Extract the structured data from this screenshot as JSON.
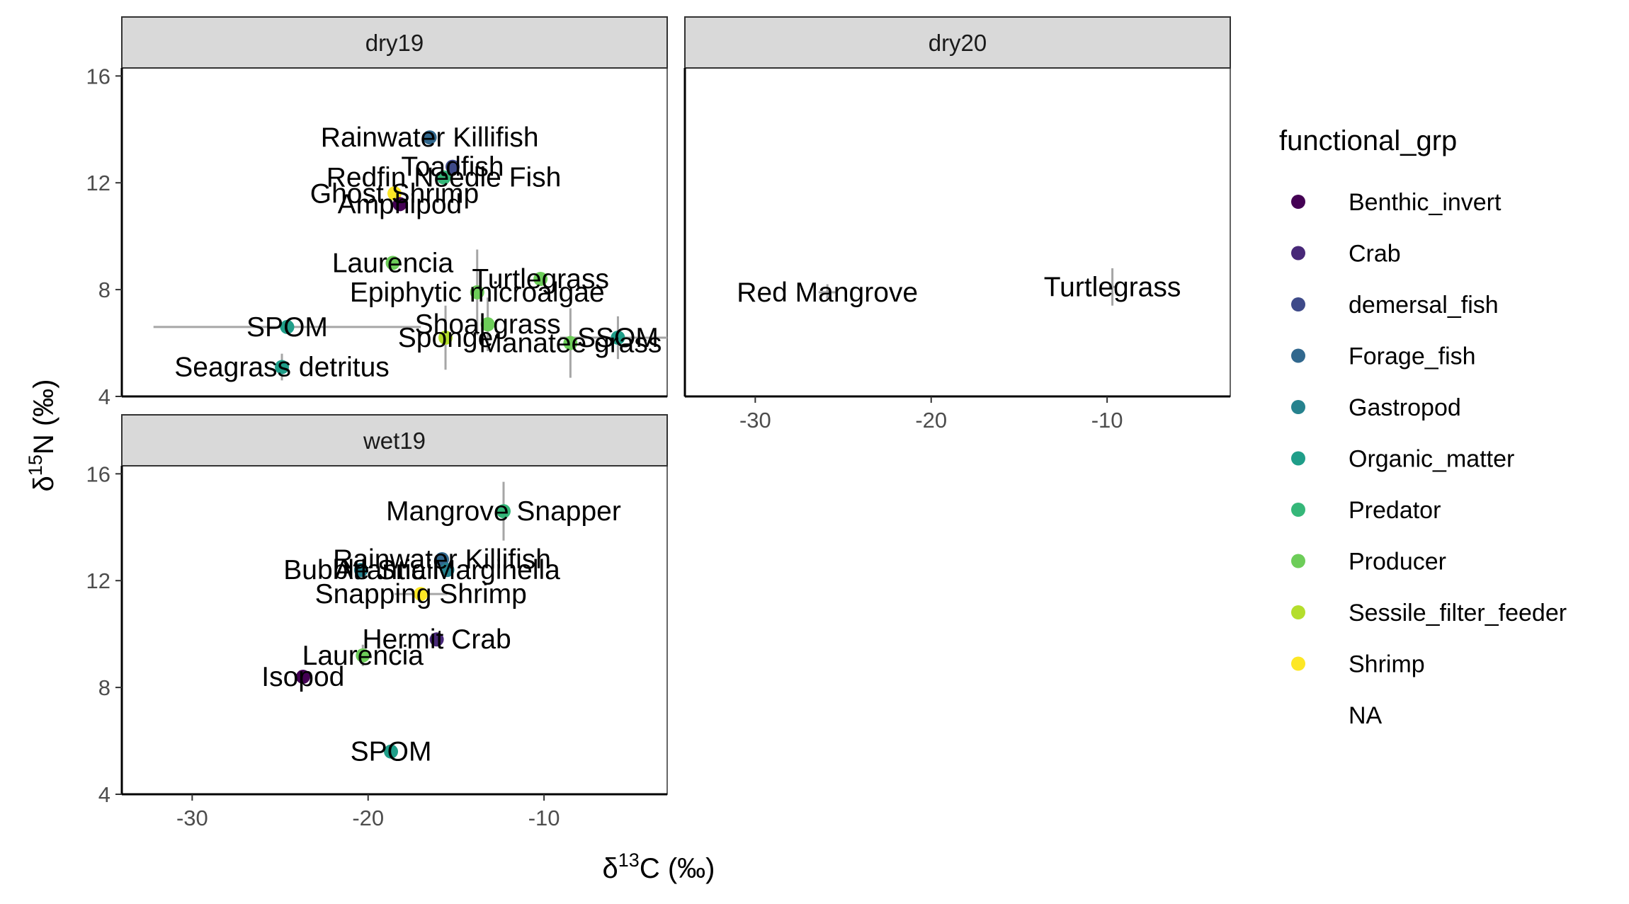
{
  "chart_data": {
    "type": "scatter",
    "xlabel_main": "δ",
    "xlabel_sup": "13",
    "xlabel_rest": "C (‰)",
    "ylabel_main": "δ",
    "ylabel_sup": "15",
    "ylabel_rest": "N (‰)",
    "xlim": [
      -34,
      -3
    ],
    "ylim": [
      4,
      16.3
    ],
    "x_ticks": [
      -30,
      -20,
      -10
    ],
    "y_ticks": [
      4,
      8,
      12,
      16
    ],
    "x_tick_labels": [
      "-30",
      "-20",
      "-10"
    ],
    "y_tick_labels": [
      "4",
      "8",
      "12",
      "16"
    ],
    "legend": {
      "title": "functional_grp",
      "position": "right",
      "entries": [
        {
          "label": "Benthic_invert",
          "color": "#440154"
        },
        {
          "label": "Crab",
          "color": "#482878"
        },
        {
          "label": "demersal_fish",
          "color": "#3E4A89"
        },
        {
          "label": "Forage_fish",
          "color": "#31688E"
        },
        {
          "label": "Gastropod",
          "color": "#26828E"
        },
        {
          "label": "Organic_matter",
          "color": "#1F9E89"
        },
        {
          "label": "Predator",
          "color": "#35B779"
        },
        {
          "label": "Producer",
          "color": "#6DCD59"
        },
        {
          "label": "Sessile_filter_feeder",
          "color": "#B4DE2C"
        },
        {
          "label": "Shrimp",
          "color": "#FDE725"
        },
        {
          "label": "NA",
          "color": null
        }
      ]
    },
    "facets": [
      {
        "strip": "dry19",
        "points": [
          {
            "label": "Rainwater Killifish",
            "group": "Forage_fish",
            "x": -16.5,
            "y": 13.7,
            "xerr": 0.3,
            "yerr": 0.2
          },
          {
            "label": "Toadfish",
            "group": "demersal_fish",
            "x": -15.2,
            "y": 12.6,
            "xerr": 0.3,
            "yerr": 0.2
          },
          {
            "label": "Redfin Needle Fish",
            "group": "Predator",
            "x": -15.7,
            "y": 12.2,
            "xerr": 0.3,
            "yerr": 0.2
          },
          {
            "label": "Ghost Shrimp",
            "group": "Shrimp",
            "x": -18.5,
            "y": 11.6,
            "xerr": 0.3,
            "yerr": 0.2
          },
          {
            "label": "Amphipod",
            "group": "Benthic_invert",
            "x": -18.2,
            "y": 11.2,
            "xerr": 0.3,
            "yerr": 0.2
          },
          {
            "label": "Laurencia",
            "group": "Producer",
            "x": -18.6,
            "y": 9.0,
            "xerr": 0.3,
            "yerr": 0.2
          },
          {
            "label": "Turtlegrass",
            "group": "Producer",
            "x": -10.2,
            "y": 8.4,
            "xerr": 0.3,
            "yerr": 0.2
          },
          {
            "label": "Epiphytic microalgae",
            "group": "Producer",
            "x": -13.8,
            "y": 7.9,
            "xerr": 0.3,
            "yerr": 1.6
          },
          {
            "label": "SPOM",
            "group": "Organic_matter",
            "x": -24.6,
            "y": 6.6,
            "xerr": 7.6,
            "yerr": 0.2
          },
          {
            "label": "Shoal grass",
            "group": "Producer",
            "x": -13.2,
            "y": 6.7,
            "xerr": 0.3,
            "yerr": 1.0
          },
          {
            "label": "Sponge",
            "group": "Sessile_filter_feeder",
            "x": -15.6,
            "y": 6.2,
            "xerr": 0.3,
            "yerr": 1.2
          },
          {
            "label": "Manatee grass",
            "group": "Producer",
            "x": -8.5,
            "y": 6.0,
            "xerr": 0.3,
            "yerr": 1.3
          },
          {
            "label": "SSOM",
            "group": "Organic_matter",
            "x": -5.8,
            "y": 6.2,
            "xerr": 3.3,
            "yerr": 0.8
          },
          {
            "label": "Seagrass detritus",
            "group": "Organic_matter",
            "x": -24.9,
            "y": 5.1,
            "xerr": 0.3,
            "yerr": 0.5
          }
        ]
      },
      {
        "strip": "dry20",
        "points": [
          {
            "label": "Red Mangrove",
            "group": "NA",
            "x": -25.9,
            "y": 7.9,
            "xerr": 0.5,
            "yerr": 0.3
          },
          {
            "label": "Turtlegrass",
            "group": "NA",
            "x": -9.7,
            "y": 8.1,
            "xerr": 0.2,
            "yerr": 0.7
          }
        ]
      },
      {
        "strip": "wet19",
        "points": [
          {
            "label": "Mangrove Snapper",
            "group": "Predator",
            "x": -12.3,
            "y": 14.6,
            "xerr": 0.3,
            "yerr": 1.1
          },
          {
            "label": "Rainwater Killifish",
            "group": "Forage_fish",
            "x": -15.8,
            "y": 12.8,
            "xerr": 0.3,
            "yerr": 0.2
          },
          {
            "label": "Atlantic Marginella",
            "group": "Gastropod",
            "x": -15.5,
            "y": 12.4,
            "xerr": 0.3,
            "yerr": 0.2
          },
          {
            "label": "Bubble Snail",
            "group": "Gastropod",
            "x": -20.4,
            "y": 12.4,
            "xerr": 0.3,
            "yerr": 0.2
          },
          {
            "label": "Snapping Shrimp",
            "group": "Shrimp",
            "x": -17.0,
            "y": 11.5,
            "xerr": 1.5,
            "yerr": 0.2
          },
          {
            "label": "Hermit Crab",
            "group": "Crab",
            "x": -16.1,
            "y": 9.8,
            "xerr": 0.3,
            "yerr": 0.2
          },
          {
            "label": "Laurencia",
            "group": "Producer",
            "x": -20.3,
            "y": 9.2,
            "xerr": 0.3,
            "yerr": 0.4
          },
          {
            "label": "Isopod",
            "group": "Benthic_invert",
            "x": -23.7,
            "y": 8.4,
            "xerr": 0.3,
            "yerr": 0.2
          },
          {
            "label": "SPOM",
            "group": "Organic_matter",
            "x": -18.7,
            "y": 5.6,
            "xerr": 0.3,
            "yerr": 0.2
          }
        ]
      }
    ]
  }
}
